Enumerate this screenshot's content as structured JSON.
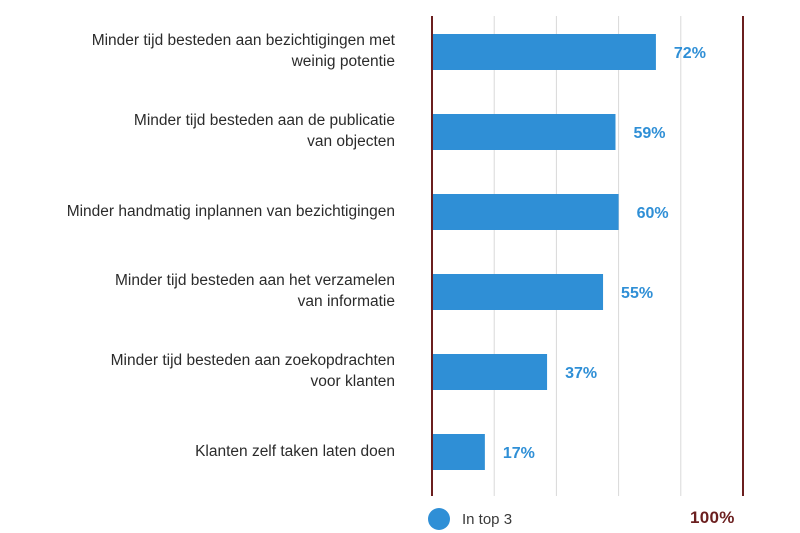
{
  "chart_data": {
    "type": "bar",
    "orientation": "horizontal",
    "categories": [
      [
        "Minder tijd besteden aan bezichtigingen met",
        "weinig potentie"
      ],
      [
        "Minder tijd besteden aan de publicatie",
        "van objecten"
      ],
      [
        "Minder handmatig inplannen van bezichtigingen"
      ],
      [
        "Minder tijd besteden aan het verzamelen",
        "van informatie"
      ],
      [
        "Minder tijd besteden aan zoekopdrachten",
        "voor klanten"
      ],
      [
        "Klanten zelf taken laten doen"
      ]
    ],
    "series": [
      {
        "name": "In top 3",
        "values": [
          72,
          59,
          60,
          55,
          37,
          17
        ]
      }
    ],
    "value_labels": [
      "72%",
      "59%",
      "60%",
      "55%",
      "37%",
      "17%"
    ],
    "xlim": [
      0,
      100
    ],
    "xtick_values": [
      0,
      20,
      40,
      60,
      80,
      100
    ],
    "grid": true,
    "max_label": "100%",
    "legend": {
      "position": "bottom",
      "label": "In top 3"
    }
  },
  "colors": {
    "bar": "#2f8fd6",
    "value_label": "#2f8fd6",
    "axis": "#6b1f1f",
    "grid": "#d9d9d9",
    "max_label": "#6b1f1f"
  }
}
